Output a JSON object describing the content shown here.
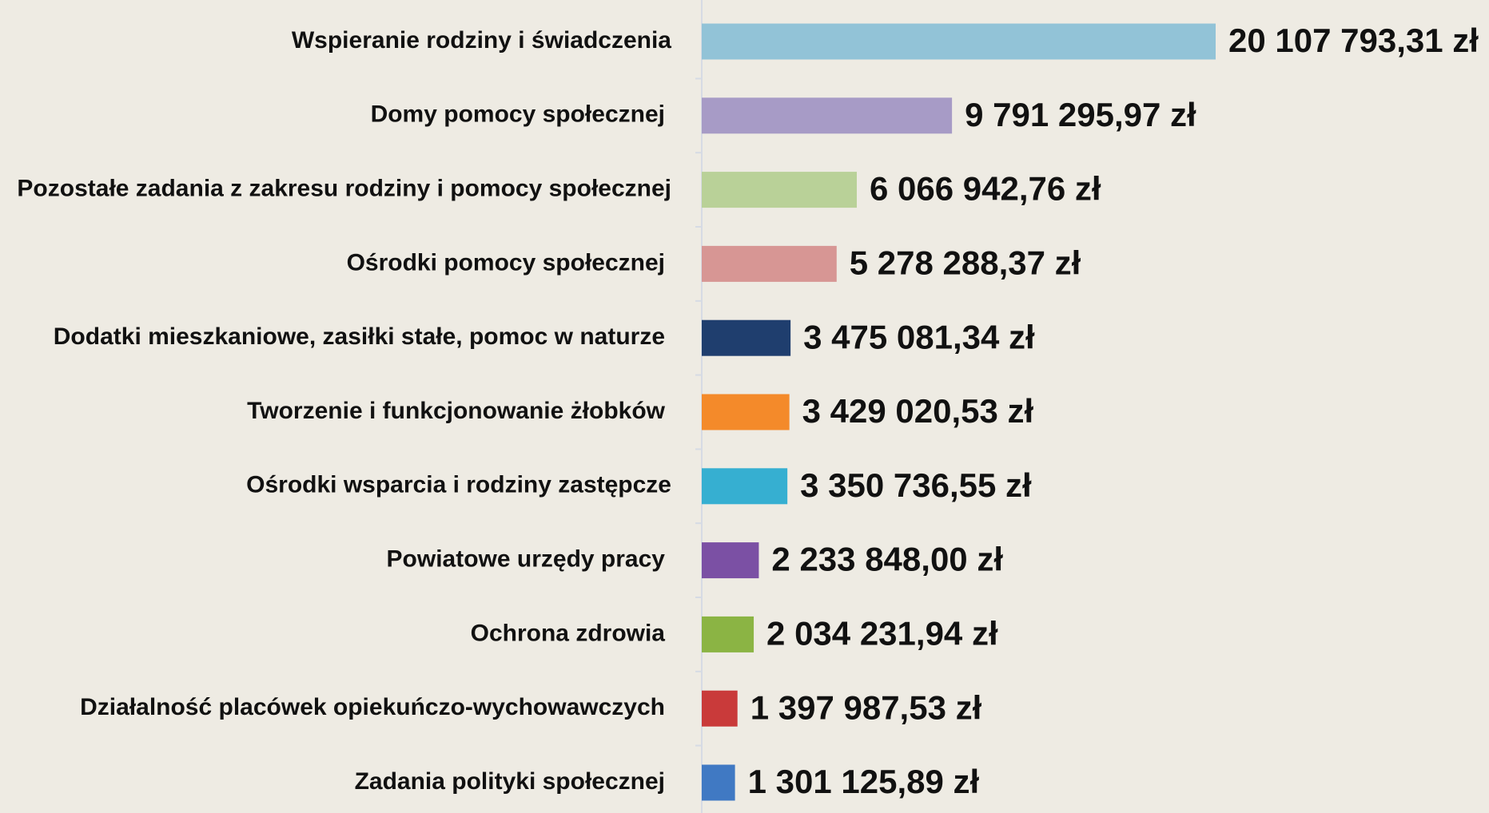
{
  "chart_data": {
    "type": "hbar",
    "categories": [
      "Wspieranie rodziny i świadczenia",
      "Domy pomocy społecznej",
      "Pozostałe zadania z zakresu rodziny i pomocy społecznej",
      "Ośrodki pomocy społecznej",
      "Dodatki mieszkaniowe, zasiłki stałe, pomoc w naturze",
      "Tworzenie i funkcjonowanie żłobków",
      "Ośrodki wsparcia i rodziny zastępcze",
      "Powiatowe urzędy pracy",
      "Ochrona zdrowia",
      "Działalność placówek opiekuńczo-wychowawczych",
      "Zadania polityki społecznej"
    ],
    "values": [
      20107793.31,
      9791295.97,
      6066942.76,
      5278288.37,
      3475081.34,
      3429020.53,
      3350736.55,
      2233848.0,
      2034231.94,
      1397987.53,
      1301125.89
    ],
    "value_labels": [
      "20 107 793,31 zł",
      "9 791 295,97 zł",
      "6 066 942,76 zł",
      "5 278 288,37 zł",
      "3 475 081,34 zł",
      "3 429 020,53 zł",
      "3 350 736,55 zł",
      "2 233 848,00 zł",
      "2 034 231,94 zł",
      "1 397 987,53 zł",
      "1 301 125,89 zł"
    ],
    "colors": [
      "#92c3d7",
      "#a79bc6",
      "#b9d198",
      "#d79694",
      "#1f3e6e",
      "#f48a2a",
      "#36afd1",
      "#7b50a4",
      "#8bb444",
      "#c93a3a",
      "#4079c3"
    ]
  }
}
